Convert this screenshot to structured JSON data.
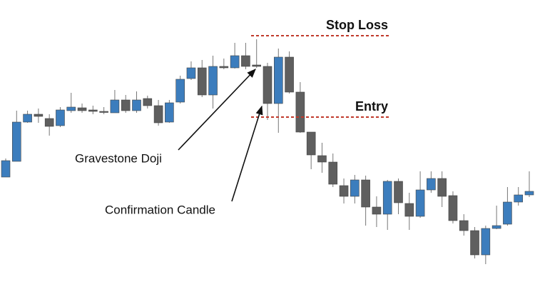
{
  "chart_data": {
    "type": "candlestick",
    "ylim": [
      0,
      416
    ],
    "up_color": "#3c7dbd",
    "down_color": "#5f5f5f",
    "open": [
      168,
      190,
      245,
      256,
      250,
      240,
      261,
      265,
      262,
      260,
      258,
      276,
      261,
      278,
      268,
      245,
      273,
      306,
      321,
      283,
      323,
      321,
      338,
      325,
      323,
      271,
      336,
      287,
      231,
      198,
      189,
      156,
      141,
      164,
      126,
      116,
      162,
      131,
      113,
      150,
      166,
      142,
      107,
      93,
      59,
      96,
      102,
      133,
      143
    ],
    "high": [
      194,
      261,
      261,
      264,
      256,
      266,
      286,
      271,
      268,
      266,
      290,
      283,
      288,
      282,
      276,
      276,
      310,
      330,
      332,
      338,
      334,
      356,
      356,
      361,
      328,
      348,
      344,
      301,
      231,
      216,
      201,
      166,
      171,
      170,
      141,
      164,
      166,
      146,
      176,
      176,
      176,
      148,
      116,
      98,
      100,
      128,
      154,
      154,
      176
    ],
    "low": [
      168,
      190,
      244,
      244,
      226,
      238,
      258,
      258,
      256,
      256,
      258,
      258,
      258,
      264,
      240,
      244,
      271,
      304,
      280,
      264,
      319,
      320,
      319,
      321,
      248,
      230,
      285,
      230,
      179,
      174,
      154,
      131,
      131,
      100,
      98,
      94,
      116,
      94,
      111,
      146,
      126,
      103,
      86,
      54,
      46,
      95,
      100,
      128,
      140
    ],
    "close": [
      191,
      245,
      256,
      253,
      239,
      262,
      266,
      261,
      260,
      259,
      276,
      261,
      276,
      268,
      244,
      272,
      305,
      321,
      283,
      323,
      321,
      338,
      323,
      323,
      271,
      336,
      287,
      231,
      199,
      189,
      158,
      141,
      164,
      126,
      116,
      162,
      132,
      113,
      150,
      166,
      141,
      107,
      93,
      59,
      96,
      100,
      133,
      143,
      148
    ],
    "levels": [
      {
        "label": "Stop Loss",
        "value": 366,
        "color": "#c0392b"
      },
      {
        "label": "Entry",
        "value": 252,
        "color": "#c0392b"
      }
    ],
    "annotations": [
      "Gravestone Doji",
      "Confirmation Candle"
    ]
  }
}
